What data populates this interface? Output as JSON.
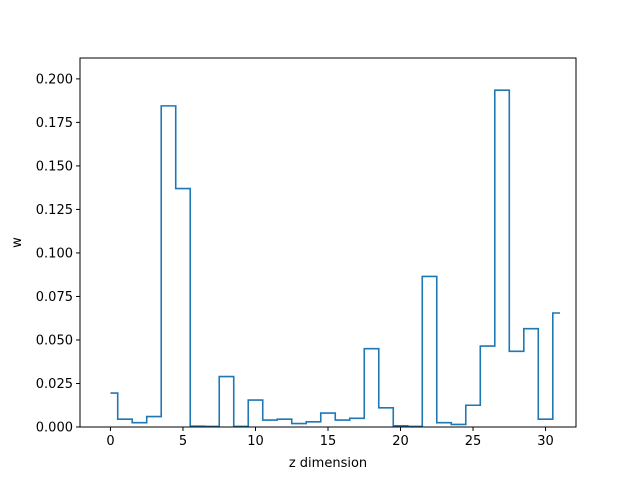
{
  "chart_data": {
    "type": "step",
    "title": "",
    "xlabel": "z dimension",
    "ylabel": "w",
    "xlim": [
      -2.1,
      32.1
    ],
    "ylim": [
      0,
      0.212
    ],
    "xticks": [
      0,
      5,
      10,
      15,
      20,
      25,
      30
    ],
    "yticks": [
      0.0,
      0.025,
      0.05,
      0.075,
      0.1,
      0.125,
      0.15,
      0.175,
      0.2
    ],
    "ytick_labels": [
      "0.000",
      "0.025",
      "0.050",
      "0.075",
      "0.100",
      "0.125",
      "0.150",
      "0.175",
      "0.200"
    ],
    "xtick_labels": [
      "0",
      "5",
      "10",
      "15",
      "20",
      "25",
      "30"
    ],
    "grid": false,
    "series": [
      {
        "line_color": "#1f77b4",
        "step_where": "mid",
        "x": [
          0,
          1,
          2,
          3,
          4,
          5,
          6,
          7,
          8,
          9,
          10,
          11,
          12,
          13,
          14,
          15,
          16,
          17,
          18,
          19,
          20,
          21,
          22,
          23,
          24,
          25,
          26,
          27,
          28,
          29,
          30,
          31
        ],
        "values": [
          0.0195,
          0.0045,
          0.0025,
          0.006,
          0.1845,
          0.137,
          0.0005,
          0.0003,
          0.029,
          0.0003,
          0.0155,
          0.004,
          0.0045,
          0.002,
          0.003,
          0.008,
          0.004,
          0.005,
          0.045,
          0.011,
          0.0007,
          0.0003,
          0.0865,
          0.0025,
          0.0015,
          0.0125,
          0.0465,
          0.1935,
          0.0435,
          0.0565,
          0.0045,
          0.0655
        ]
      }
    ]
  }
}
